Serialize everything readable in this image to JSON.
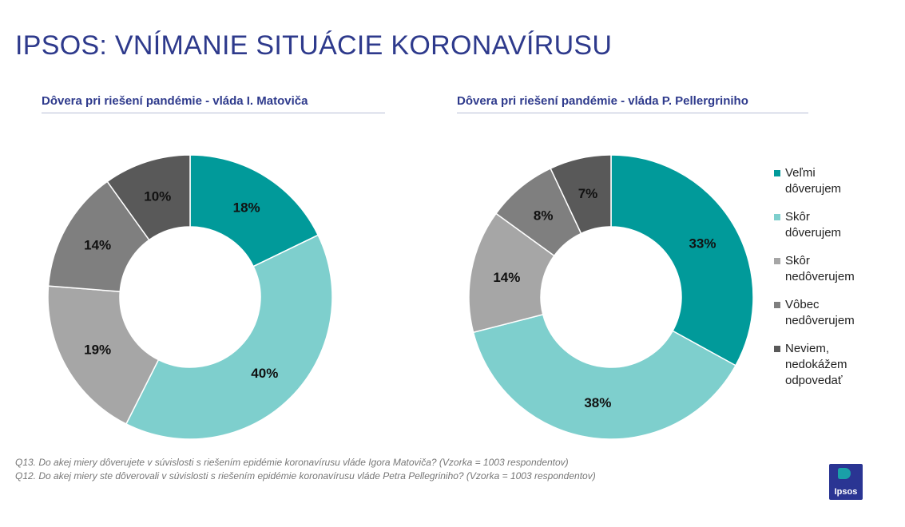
{
  "title": "IPSOS: VNÍMANIE SITUÁCIE KORONAVÍRUSU",
  "colors": {
    "velmi_doverujem": "#019a9a",
    "skor_doverujem": "#7ecfcd",
    "skor_nedoverujem": "#a6a6a6",
    "vobec_nedoverujem": "#7f7f7f",
    "neviem": "#595959",
    "title": "#2e3a8c"
  },
  "chart_data": [
    {
      "type": "pie",
      "donut": true,
      "title": "Dôvera pri riešení pandémie - vláda I. Matoviča",
      "categories": [
        "Veľmi dôverujem",
        "Skôr dôverujem",
        "Skôr nedôverujem",
        "Vôbec nedôverujem",
        "Neviem, nedokážem odpovedať"
      ],
      "values": [
        18,
        40,
        19,
        14,
        10
      ],
      "labels": [
        "18%",
        "40%",
        "19%",
        "14%",
        "10%"
      ]
    },
    {
      "type": "pie",
      "donut": true,
      "title": "Dôvera pri riešení pandémie - vláda P. Pellergriniho",
      "categories": [
        "Veľmi dôverujem",
        "Skôr dôverujem",
        "Skôr nedôverujem",
        "Vôbec nedôverujem",
        "Neviem, nedokážem odpovedať"
      ],
      "values": [
        33,
        38,
        14,
        8,
        7
      ],
      "labels": [
        "33%",
        "38%",
        "14%",
        "8%",
        "7%"
      ]
    }
  ],
  "legend": [
    {
      "label": "Veľmi\ndôverujem",
      "color": "#019a9a"
    },
    {
      "label": "Skôr\ndôverujem",
      "color": "#7ecfcd"
    },
    {
      "label": "Skôr\nnedôverujem",
      "color": "#a6a6a6"
    },
    {
      "label": "Vôbec\nnedôverujem",
      "color": "#7f7f7f"
    },
    {
      "label": "Neviem,\nnedokážem\nodpovedať",
      "color": "#595959"
    }
  ],
  "footnotes": [
    "Q13. Do akej miery dôverujete v súvislosti s riešením epidémie koronavírusu vláde Igora Matoviča? (Vzorka = 1003 respondentov)",
    "Q12. Do akej miery ste dôverovali v súvislosti s riešením epidémie koronavírusu vláde Petra Pellegriniho? (Vzorka = 1003 respondentov)"
  ],
  "logo_text": "Ipsos"
}
